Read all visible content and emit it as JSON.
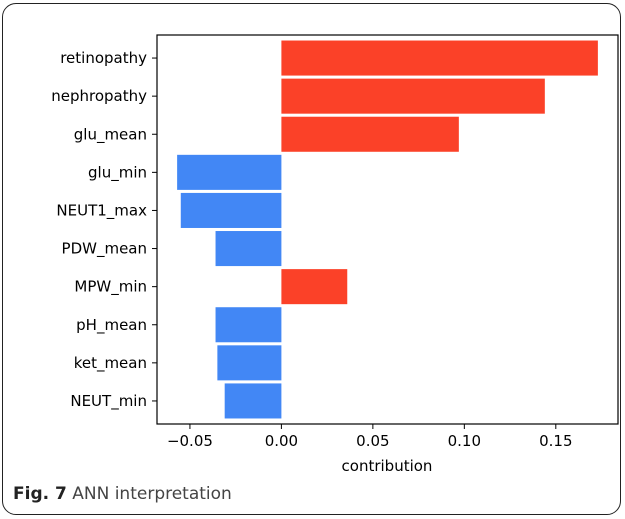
{
  "chart_data": {
    "type": "bar",
    "orientation": "horizontal",
    "xlabel": "contribution",
    "xlim": [
      -0.068,
      0.184
    ],
    "xticks": [
      -0.05,
      0.0,
      0.05,
      0.1,
      0.15
    ],
    "xtick_labels": [
      "−0.05",
      "0.00",
      "0.05",
      "0.10",
      "0.15"
    ],
    "categories": [
      "retinopathy",
      "nephropathy",
      "glu_mean",
      "glu_min",
      "NEUT1_max",
      "PDW_mean",
      "MPW_min",
      "pH_mean",
      "ket_mean",
      "NEUT_min"
    ],
    "values": [
      0.173,
      0.144,
      0.097,
      -0.057,
      -0.055,
      -0.036,
      0.036,
      -0.036,
      -0.035,
      -0.031
    ],
    "colors": {
      "positive": "#fb4128",
      "negative": "#4287f5"
    },
    "grid": false
  },
  "caption": {
    "label": "Fig. 7",
    "text": "ANN interpretation"
  }
}
